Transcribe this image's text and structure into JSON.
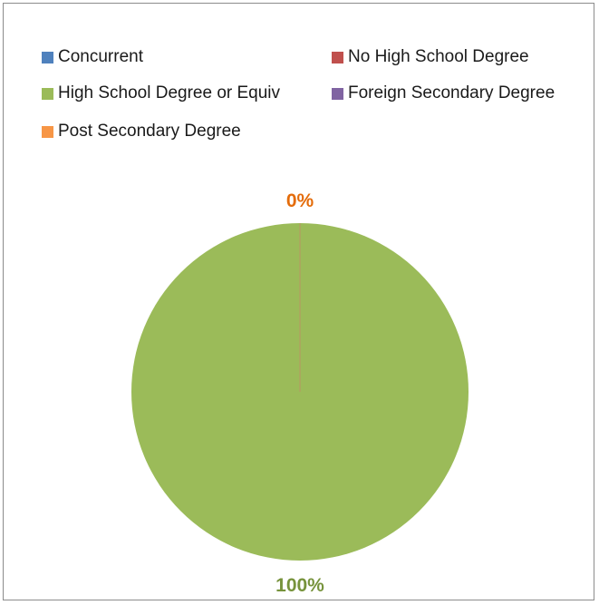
{
  "chart_data": {
    "type": "pie",
    "categories": [
      "Concurrent",
      "No High School Degree",
      "High School Degree or Equiv",
      "Foreign Secondary Degree",
      "Post Secondary Degree"
    ],
    "values": [
      0,
      0,
      100,
      0,
      0
    ],
    "colors": [
      "#4f81bd",
      "#c0504d",
      "#9bbb59",
      "#8064a2",
      "#f79646"
    ],
    "data_labels": [
      {
        "category": "Post Secondary Degree",
        "text": "0%",
        "color": "#e46c0a"
      },
      {
        "category": "High School Degree or Equiv",
        "text": "100%",
        "color": "#77933c"
      }
    ],
    "legend_position": "top",
    "title": ""
  }
}
